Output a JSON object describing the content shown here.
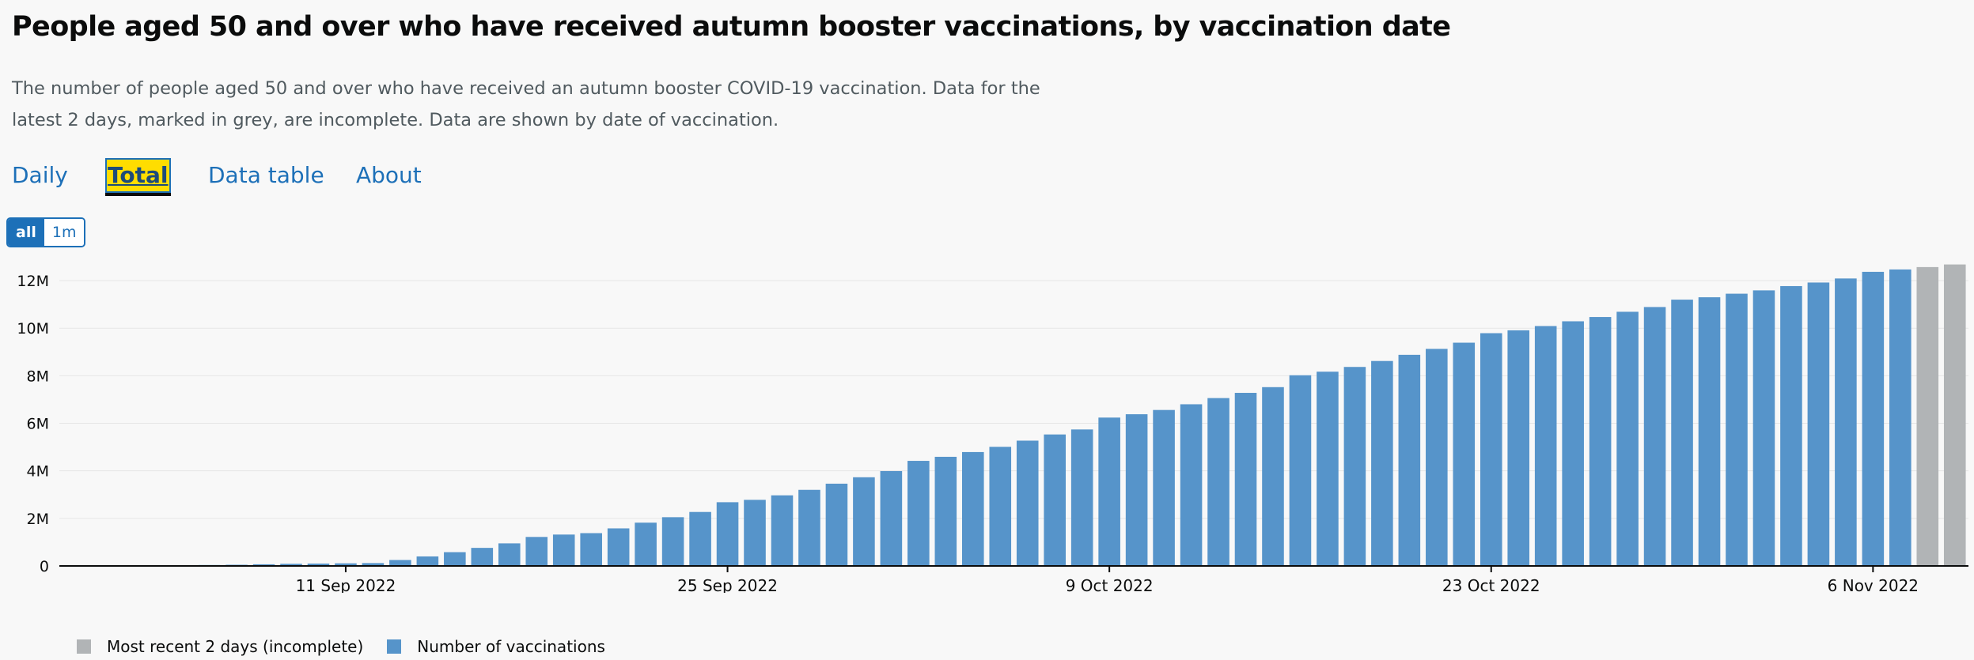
{
  "header": {
    "title": "People aged 50 and over who have received autumn booster vaccinations, by vaccination date",
    "description": "The number of people aged 50 and over who have received an autumn booster COVID-19 vaccination. Data for the latest 2 days, marked in grey, are incomplete. Data are shown by date of vaccination."
  },
  "tabs": [
    {
      "label": "Daily",
      "active": false
    },
    {
      "label": "Total",
      "active": true
    },
    {
      "label": "Data table",
      "active": false
    },
    {
      "label": "About",
      "active": false
    }
  ],
  "range": {
    "all": "all",
    "one_month": "1m",
    "selected": "all"
  },
  "legend": {
    "incomplete": "Most recent 2 days (incomplete)",
    "complete": "Number of vaccinations"
  },
  "colors": {
    "complete": "#5694ca",
    "incomplete": "#b1b4b6",
    "accent": "#1d70b8",
    "highlight": "#ffdd00"
  },
  "chart_data": {
    "type": "bar",
    "title": "",
    "xlabel": "",
    "ylabel": "",
    "ylim": [
      0,
      12500000
    ],
    "yticks": [
      0,
      2000000,
      4000000,
      6000000,
      8000000,
      10000000,
      12000000
    ],
    "ytick_labels": [
      "0",
      "2M",
      "4M",
      "6M",
      "8M",
      "10M",
      "12M"
    ],
    "xtick_labels": [
      {
        "date": "2022-09-11",
        "label": "11 Sep 2022"
      },
      {
        "date": "2022-09-25",
        "label": "25 Sep 2022"
      },
      {
        "date": "2022-10-09",
        "label": "9 Oct 2022"
      },
      {
        "date": "2022-10-23",
        "label": "23 Oct 2022"
      },
      {
        "date": "2022-11-06",
        "label": "6 Nov 2022"
      }
    ],
    "grid": true,
    "legend_position": "bottom-left",
    "series": [
      {
        "name": "Number of vaccinations",
        "x": [
          "2022-09-01",
          "2022-09-02",
          "2022-09-03",
          "2022-09-04",
          "2022-09-05",
          "2022-09-06",
          "2022-09-07",
          "2022-09-08",
          "2022-09-09",
          "2022-09-10",
          "2022-09-11",
          "2022-09-12",
          "2022-09-13",
          "2022-09-14",
          "2022-09-15",
          "2022-09-16",
          "2022-09-17",
          "2022-09-18",
          "2022-09-19",
          "2022-09-20",
          "2022-09-21",
          "2022-09-22",
          "2022-09-23",
          "2022-09-24",
          "2022-09-25",
          "2022-09-26",
          "2022-09-27",
          "2022-09-28",
          "2022-09-29",
          "2022-09-30",
          "2022-10-01",
          "2022-10-02",
          "2022-10-03",
          "2022-10-04",
          "2022-10-05",
          "2022-10-06",
          "2022-10-07",
          "2022-10-08",
          "2022-10-09",
          "2022-10-10",
          "2022-10-11",
          "2022-10-12",
          "2022-10-13",
          "2022-10-14",
          "2022-10-15",
          "2022-10-16",
          "2022-10-17",
          "2022-10-18",
          "2022-10-19",
          "2022-10-20",
          "2022-10-21",
          "2022-10-22",
          "2022-10-23",
          "2022-10-24",
          "2022-10-25",
          "2022-10-26",
          "2022-10-27",
          "2022-10-28",
          "2022-10-29",
          "2022-10-30",
          "2022-10-31",
          "2022-11-01",
          "2022-11-02",
          "2022-11-03",
          "2022-11-04",
          "2022-11-05",
          "2022-11-06",
          "2022-11-07"
        ],
        "values": [
          10000,
          15000,
          20000,
          25000,
          30000,
          40000,
          50000,
          70000,
          90000,
          100000,
          110000,
          120000,
          250000,
          400000,
          580000,
          760000,
          950000,
          1220000,
          1320000,
          1380000,
          1580000,
          1820000,
          2050000,
          2270000,
          2680000,
          2780000,
          2970000,
          3200000,
          3460000,
          3730000,
          3990000,
          4420000,
          4590000,
          4790000,
          5010000,
          5270000,
          5530000,
          5740000,
          6240000,
          6380000,
          6560000,
          6800000,
          7060000,
          7280000,
          7520000,
          8020000,
          8170000,
          8370000,
          8620000,
          8880000,
          9130000,
          9390000,
          9790000,
          9910000,
          10090000,
          10290000,
          10470000,
          10690000,
          10890000,
          11200000,
          11300000,
          11450000,
          11590000,
          11770000,
          11920000,
          12090000,
          12370000,
          12470000
        ]
      },
      {
        "name": "Most recent 2 days (incomplete)",
        "x": [
          "2022-11-08",
          "2022-11-09"
        ],
        "values": [
          12570000,
          12680000
        ]
      }
    ]
  }
}
